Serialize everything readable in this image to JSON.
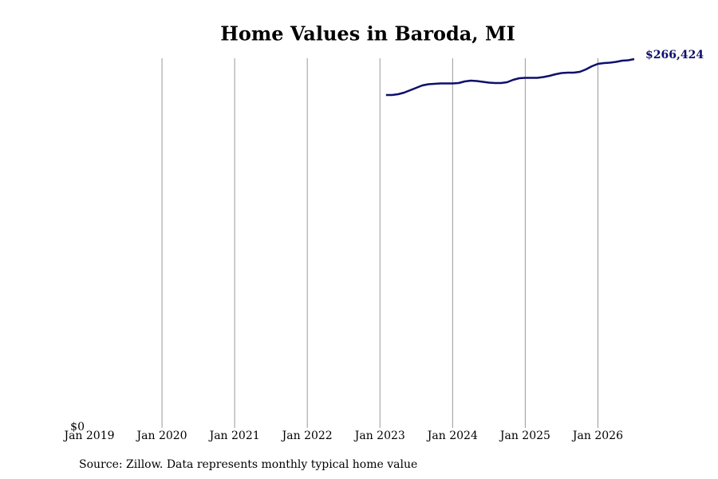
{
  "chart_data": {
    "type": "line",
    "title": "Home Values in Baroda, MI",
    "source": "Source: Zillow. Data represents monthly typical home value",
    "x": [
      "2023-02",
      "2023-03",
      "2023-04",
      "2023-05",
      "2023-06",
      "2023-07",
      "2023-08",
      "2023-09",
      "2023-10",
      "2023-11",
      "2023-12",
      "2024-01",
      "2024-02",
      "2024-03",
      "2024-04",
      "2024-05",
      "2024-06",
      "2024-07",
      "2024-08",
      "2024-09",
      "2024-10",
      "2024-11",
      "2024-12",
      "2025-01",
      "2025-02",
      "2025-03",
      "2025-04",
      "2025-05",
      "2025-06",
      "2025-07",
      "2025-08",
      "2025-09",
      "2025-10",
      "2025-11",
      "2025-12",
      "2026-01",
      "2026-02",
      "2026-03",
      "2026-04",
      "2026-05",
      "2026-06",
      "2026-07"
    ],
    "series": [
      {
        "color": "#0f0f6b",
        "values": [
          240484,
          240484,
          241061,
          242214,
          243944,
          245674,
          247404,
          248269,
          248558,
          248846,
          248846,
          248846,
          249134,
          250288,
          250865,
          250576,
          249999,
          249423,
          249134,
          249134,
          249711,
          251441,
          252595,
          252883,
          252883,
          252883,
          253460,
          254325,
          255478,
          256343,
          256632,
          256632,
          257208,
          258938,
          261245,
          262975,
          263552,
          263840,
          264417,
          265282,
          265570,
          266424
        ]
      }
    ],
    "last_value_label": "$266,424",
    "xlim": [
      "2019-01",
      "2026-07"
    ],
    "xticks": [
      {
        "value": "2019-01",
        "label": "Jan 2019"
      },
      {
        "value": "2020-01",
        "label": "Jan 2020"
      },
      {
        "value": "2021-01",
        "label": "Jan 2021"
      },
      {
        "value": "2022-01",
        "label": "Jan 2022"
      },
      {
        "value": "2023-01",
        "label": "Jan 2023"
      },
      {
        "value": "2024-01",
        "label": "Jan 2024"
      },
      {
        "value": "2025-01",
        "label": "Jan 2025"
      },
      {
        "value": "2026-01",
        "label": "Jan 2026"
      }
    ],
    "ylim": [
      0,
      267000
    ],
    "yticks": [
      {
        "value": 0,
        "label": "$0"
      }
    ],
    "grid": true
  }
}
